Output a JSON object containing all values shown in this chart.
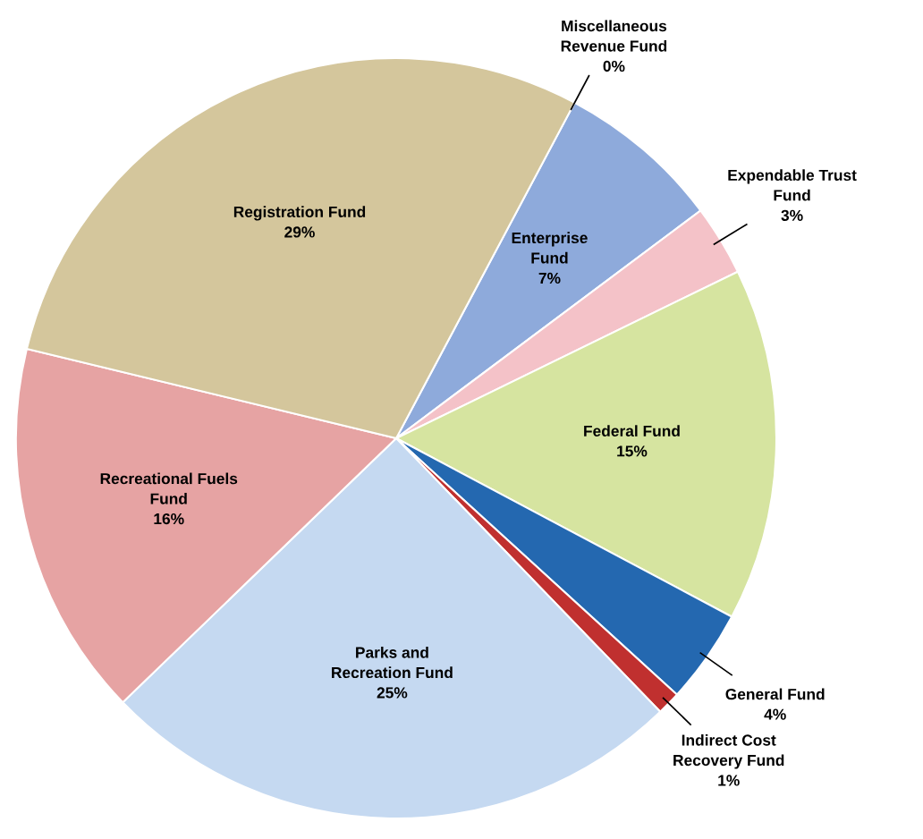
{
  "chart_data": {
    "type": "pie",
    "categories": [
      "Miscellaneous\nRevenue Fund",
      "Enterprise\nFund",
      "Expendable Trust\nFund",
      "Federal Fund",
      "General Fund",
      "Indirect Cost\nRecovery Fund",
      "Parks and\nRecreation Fund",
      "Recreational Fuels\nFund",
      "Registration Fund"
    ],
    "values": [
      0,
      7,
      3,
      15,
      4,
      1,
      25,
      16,
      29
    ],
    "value_labels": [
      "0%",
      "7%",
      "3%",
      "15%",
      "4%",
      "1%",
      "25%",
      "16%",
      "29%"
    ],
    "colors": [
      "#e07b20",
      "#8eaadb",
      "#f4c2c8",
      "#d6e4a0",
      "#2468b0",
      "#c0302f",
      "#c5d9f1",
      "#e6a3a3",
      "#d4c69c"
    ]
  }
}
